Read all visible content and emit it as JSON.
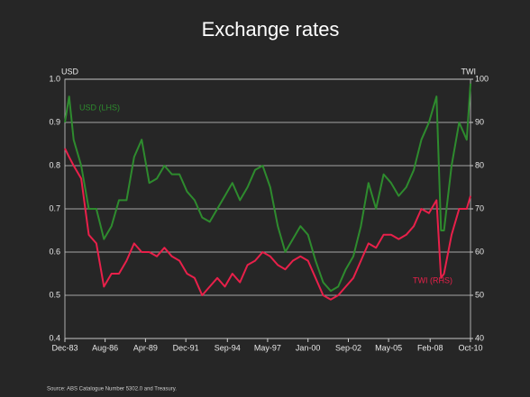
{
  "chart_data": {
    "type": "line",
    "title": "Exchange rates",
    "y_label": "USD",
    "y2_label": "TWI",
    "source": "Source: ABS Catalogue Number 5302.0 and Treasury.",
    "x": [
      1983.92,
      1984.2,
      1984.5,
      1985.0,
      1985.5,
      1986.0,
      1986.5,
      1987.0,
      1987.5,
      1988.0,
      1988.5,
      1989.0,
      1989.5,
      1990.0,
      1990.5,
      1991.0,
      1991.5,
      1992.0,
      1992.5,
      1993.0,
      1993.5,
      1994.0,
      1994.5,
      1995.0,
      1995.5,
      1996.0,
      1996.5,
      1997.0,
      1997.5,
      1998.0,
      1998.5,
      1999.0,
      1999.5,
      2000.0,
      2000.5,
      2001.0,
      2001.5,
      2002.0,
      2002.5,
      2003.0,
      2003.5,
      2004.0,
      2004.5,
      2005.0,
      2005.5,
      2006.0,
      2006.5,
      2007.0,
      2007.5,
      2008.0,
      2008.5,
      2008.8,
      2009.0,
      2009.5,
      2010.0,
      2010.5,
      2010.75
    ],
    "series": [
      {
        "name": "USD (LHS)",
        "color": "#2e8b2e",
        "axis": "y",
        "values": [
          0.9,
          0.96,
          0.86,
          0.8,
          0.7,
          0.7,
          0.63,
          0.66,
          0.72,
          0.72,
          0.82,
          0.86,
          0.76,
          0.77,
          0.8,
          0.78,
          0.78,
          0.74,
          0.72,
          0.68,
          0.67,
          0.7,
          0.73,
          0.76,
          0.72,
          0.75,
          0.79,
          0.8,
          0.75,
          0.66,
          0.6,
          0.63,
          0.66,
          0.64,
          0.58,
          0.53,
          0.51,
          0.52,
          0.56,
          0.59,
          0.66,
          0.76,
          0.7,
          0.78,
          0.76,
          0.73,
          0.75,
          0.79,
          0.86,
          0.9,
          0.96,
          0.65,
          0.65,
          0.8,
          0.9,
          0.86,
          0.99
        ]
      },
      {
        "name": "TWI (RHS)",
        "color": "#e8204a",
        "axis": "y2",
        "values": [
          84,
          82,
          80,
          77,
          64,
          62,
          52,
          55,
          55,
          58,
          62,
          60,
          60,
          59,
          61,
          59,
          58,
          55,
          54,
          50,
          52,
          54,
          52,
          55,
          53,
          57,
          58,
          60,
          59,
          57,
          56,
          58,
          59,
          58,
          54,
          50,
          49,
          50,
          52,
          54,
          58,
          62,
          61,
          64,
          64,
          63,
          64,
          66,
          70,
          69,
          72,
          54,
          55,
          64,
          70,
          70,
          73
        ]
      }
    ],
    "xlim": [
      1983.92,
      2010.75
    ],
    "xticks": [
      {
        "value": 1983.92,
        "label": "Dec-83"
      },
      {
        "value": 1986.58,
        "label": "Aug-86"
      },
      {
        "value": 1989.25,
        "label": "Apr-89"
      },
      {
        "value": 1991.92,
        "label": "Dec-91"
      },
      {
        "value": 1994.67,
        "label": "Sep-94"
      },
      {
        "value": 1997.33,
        "label": "May-97"
      },
      {
        "value": 2000.0,
        "label": "Jan-00"
      },
      {
        "value": 2002.67,
        "label": "Sep-02"
      },
      {
        "value": 2005.33,
        "label": "May-05"
      },
      {
        "value": 2008.08,
        "label": "Feb-08"
      },
      {
        "value": 2010.75,
        "label": "Oct-10"
      }
    ],
    "ylim": [
      0.4,
      1.0
    ],
    "yticks": [
      0.4,
      0.5,
      0.6,
      0.7,
      0.8,
      0.9,
      {
        "value": 1,
        "label": "1.0"
      }
    ],
    "y2lim": [
      40,
      100
    ],
    "y2ticks": [
      40,
      50,
      60,
      70,
      80,
      90,
      100
    ],
    "grid": true
  }
}
